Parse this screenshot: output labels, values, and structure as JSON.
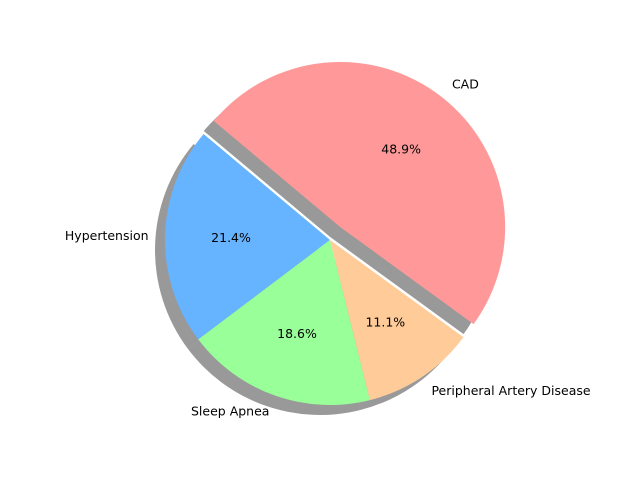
{
  "chart_data": {
    "type": "pie",
    "title": "",
    "labels": [
      "Hypertension",
      "Sleep Apnea",
      "Peripheral Artery Disease",
      "CAD"
    ],
    "values": [
      21.4,
      18.6,
      11.1,
      48.9
    ],
    "value_labels": [
      "21.4%",
      "18.6%",
      "11.1%",
      "48.9%"
    ],
    "colors": [
      "#66b3ff",
      "#99ff99",
      "#ffcc99",
      "#ff9999"
    ],
    "explode": [
      0,
      0,
      0,
      0.1
    ],
    "start_angle_deg": 140,
    "shadow": true,
    "legend": "none"
  }
}
